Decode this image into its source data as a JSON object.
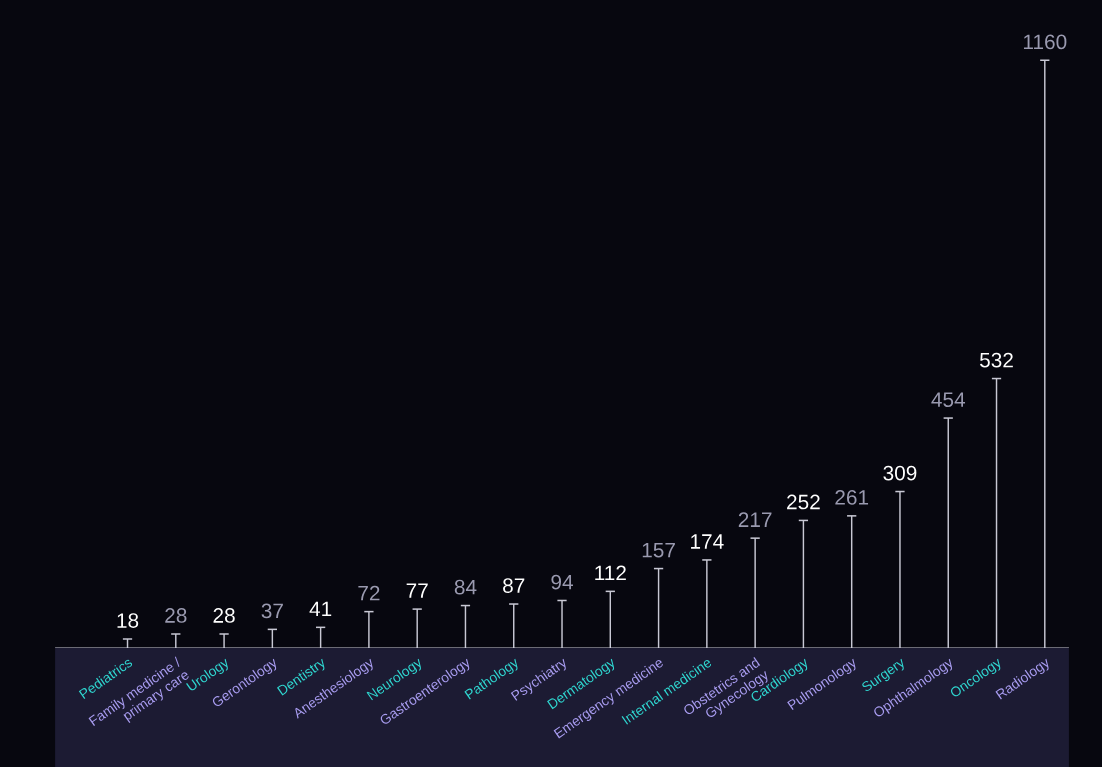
{
  "chart_data": {
    "type": "bar",
    "categories": [
      "Pediatrics",
      "Family medicine /\nprimary care",
      "Urology",
      "Gerontology",
      "Dentistry",
      "Anesthesiology",
      "Neurology",
      "Gastroenterology",
      "Pathology",
      "Psychiatry",
      "Dermatology",
      "Emergency medicine",
      "Internal medicine",
      "Obstetrics and\nGynecology",
      "Cardiology",
      "Pulmonology",
      "Surgery",
      "Ophthalmology",
      "Oncology",
      "Radiology"
    ],
    "values": [
      18,
      28,
      28,
      37,
      41,
      72,
      77,
      84,
      87,
      94,
      112,
      157,
      174,
      217,
      252,
      261,
      309,
      454,
      532,
      1160
    ],
    "color": "#c8c8d4",
    "data_labels": true
  }
}
